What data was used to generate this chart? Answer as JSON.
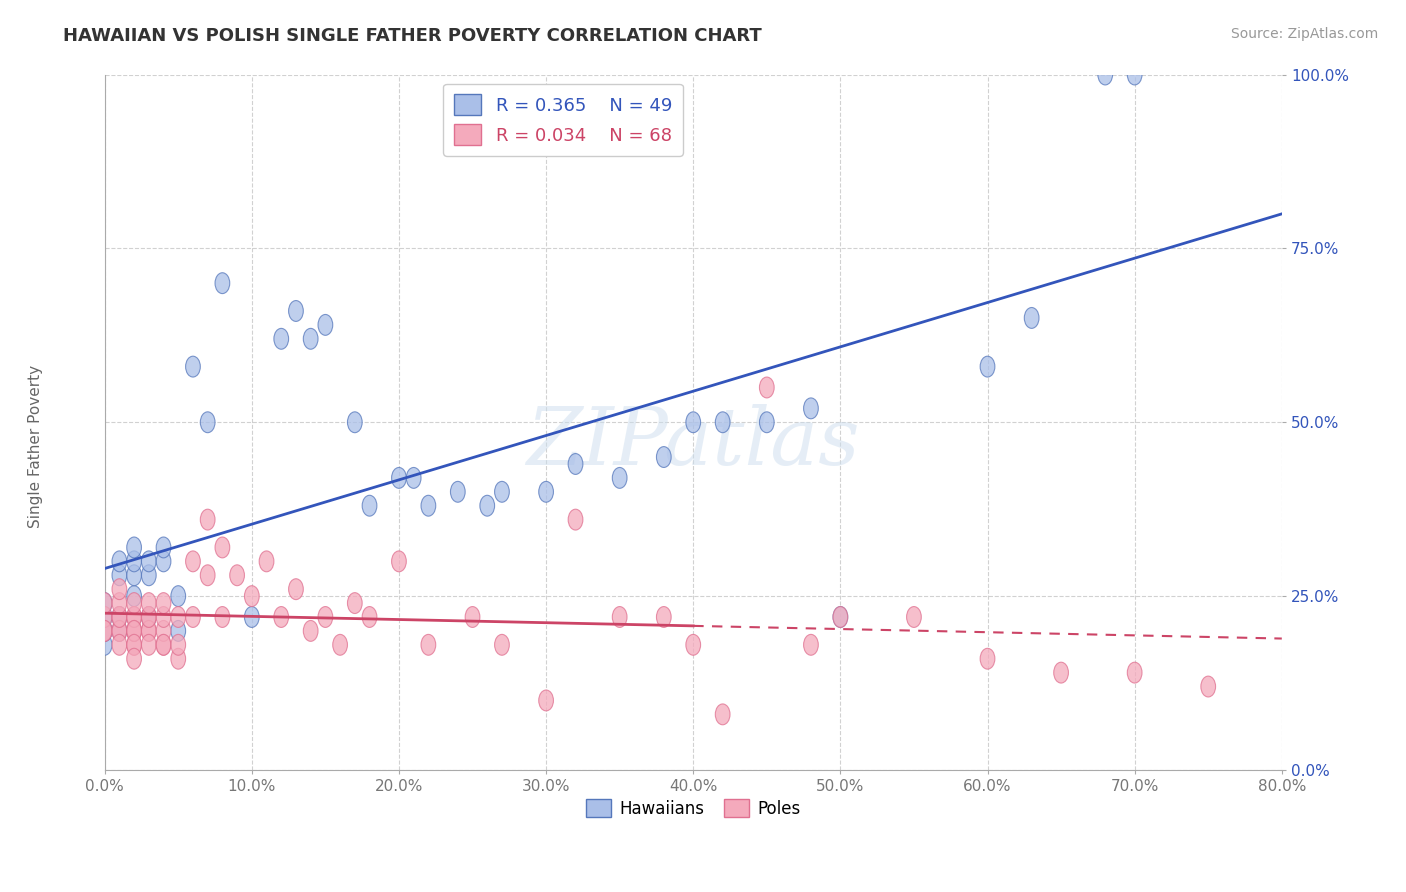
{
  "title": "HAWAIIAN VS POLISH SINGLE FATHER POVERTY CORRELATION CHART",
  "source_text": "Source: ZipAtlas.com",
  "ylabel": "Single Father Poverty",
  "watermark": "ZIPatlas",
  "legend_hawaiians": "Hawaiians",
  "legend_poles": "Poles",
  "R_hawaiians": 0.365,
  "N_hawaiians": 49,
  "R_poles": 0.034,
  "N_poles": 68,
  "blue_fill": "#AABFE8",
  "pink_fill": "#F4AABC",
  "blue_edge": "#5577BB",
  "pink_edge": "#E07090",
  "blue_line": "#3355BB",
  "pink_line": "#CC4466",
  "hawaiians_x": [
    0.0,
    0.0,
    0.0,
    0.0,
    0.0,
    0.01,
    0.01,
    0.01,
    0.01,
    0.02,
    0.02,
    0.02,
    0.02,
    0.03,
    0.03,
    0.03,
    0.04,
    0.04,
    0.05,
    0.05,
    0.06,
    0.07,
    0.08,
    0.1,
    0.12,
    0.13,
    0.14,
    0.15,
    0.17,
    0.18,
    0.2,
    0.21,
    0.22,
    0.24,
    0.26,
    0.27,
    0.3,
    0.32,
    0.35,
    0.38,
    0.4,
    0.42,
    0.45,
    0.48,
    0.5,
    0.6,
    0.63,
    0.68,
    0.7
  ],
  "hawaiians_y": [
    0.18,
    0.2,
    0.2,
    0.22,
    0.24,
    0.2,
    0.22,
    0.28,
    0.3,
    0.25,
    0.28,
    0.3,
    0.32,
    0.22,
    0.28,
    0.3,
    0.3,
    0.32,
    0.2,
    0.25,
    0.58,
    0.5,
    0.7,
    0.22,
    0.62,
    0.66,
    0.62,
    0.64,
    0.5,
    0.38,
    0.42,
    0.42,
    0.38,
    0.4,
    0.38,
    0.4,
    0.4,
    0.44,
    0.42,
    0.45,
    0.5,
    0.5,
    0.5,
    0.52,
    0.22,
    0.58,
    0.65,
    1.0,
    1.0
  ],
  "poles_x": [
    0.0,
    0.0,
    0.0,
    0.0,
    0.01,
    0.01,
    0.01,
    0.01,
    0.01,
    0.01,
    0.01,
    0.02,
    0.02,
    0.02,
    0.02,
    0.02,
    0.02,
    0.02,
    0.02,
    0.02,
    0.03,
    0.03,
    0.03,
    0.03,
    0.03,
    0.03,
    0.04,
    0.04,
    0.04,
    0.04,
    0.04,
    0.05,
    0.05,
    0.05,
    0.06,
    0.06,
    0.07,
    0.07,
    0.08,
    0.08,
    0.09,
    0.1,
    0.11,
    0.12,
    0.13,
    0.14,
    0.15,
    0.16,
    0.17,
    0.18,
    0.2,
    0.22,
    0.25,
    0.27,
    0.3,
    0.32,
    0.35,
    0.38,
    0.4,
    0.42,
    0.45,
    0.48,
    0.5,
    0.55,
    0.6,
    0.65,
    0.7,
    0.75
  ],
  "poles_y": [
    0.2,
    0.22,
    0.2,
    0.24,
    0.2,
    0.22,
    0.2,
    0.22,
    0.24,
    0.26,
    0.18,
    0.18,
    0.2,
    0.22,
    0.2,
    0.22,
    0.24,
    0.2,
    0.18,
    0.16,
    0.2,
    0.22,
    0.2,
    0.22,
    0.18,
    0.24,
    0.18,
    0.2,
    0.22,
    0.24,
    0.18,
    0.16,
    0.18,
    0.22,
    0.22,
    0.3,
    0.28,
    0.36,
    0.22,
    0.32,
    0.28,
    0.25,
    0.3,
    0.22,
    0.26,
    0.2,
    0.22,
    0.18,
    0.24,
    0.22,
    0.3,
    0.18,
    0.22,
    0.18,
    0.1,
    0.36,
    0.22,
    0.22,
    0.18,
    0.08,
    0.55,
    0.18,
    0.22,
    0.22,
    0.16,
    0.14,
    0.14,
    0.12
  ],
  "xlim": [
    0.0,
    0.8
  ],
  "ylim": [
    0.0,
    1.0
  ],
  "xticks": [
    0.0,
    0.1,
    0.2,
    0.3,
    0.4,
    0.5,
    0.6,
    0.7,
    0.8
  ],
  "yticks": [
    0.0,
    0.25,
    0.5,
    0.75,
    1.0
  ],
  "xtick_labels": [
    "0.0%",
    "10.0%",
    "20.0%",
    "30.0%",
    "40.0%",
    "50.0%",
    "60.0%",
    "70.0%",
    "80.0%"
  ],
  "ytick_labels": [
    "0.0%",
    "25.0%",
    "50.0%",
    "75.0%",
    "100.0%"
  ],
  "grid_color": "#CCCCCC",
  "background_color": "#FFFFFF"
}
